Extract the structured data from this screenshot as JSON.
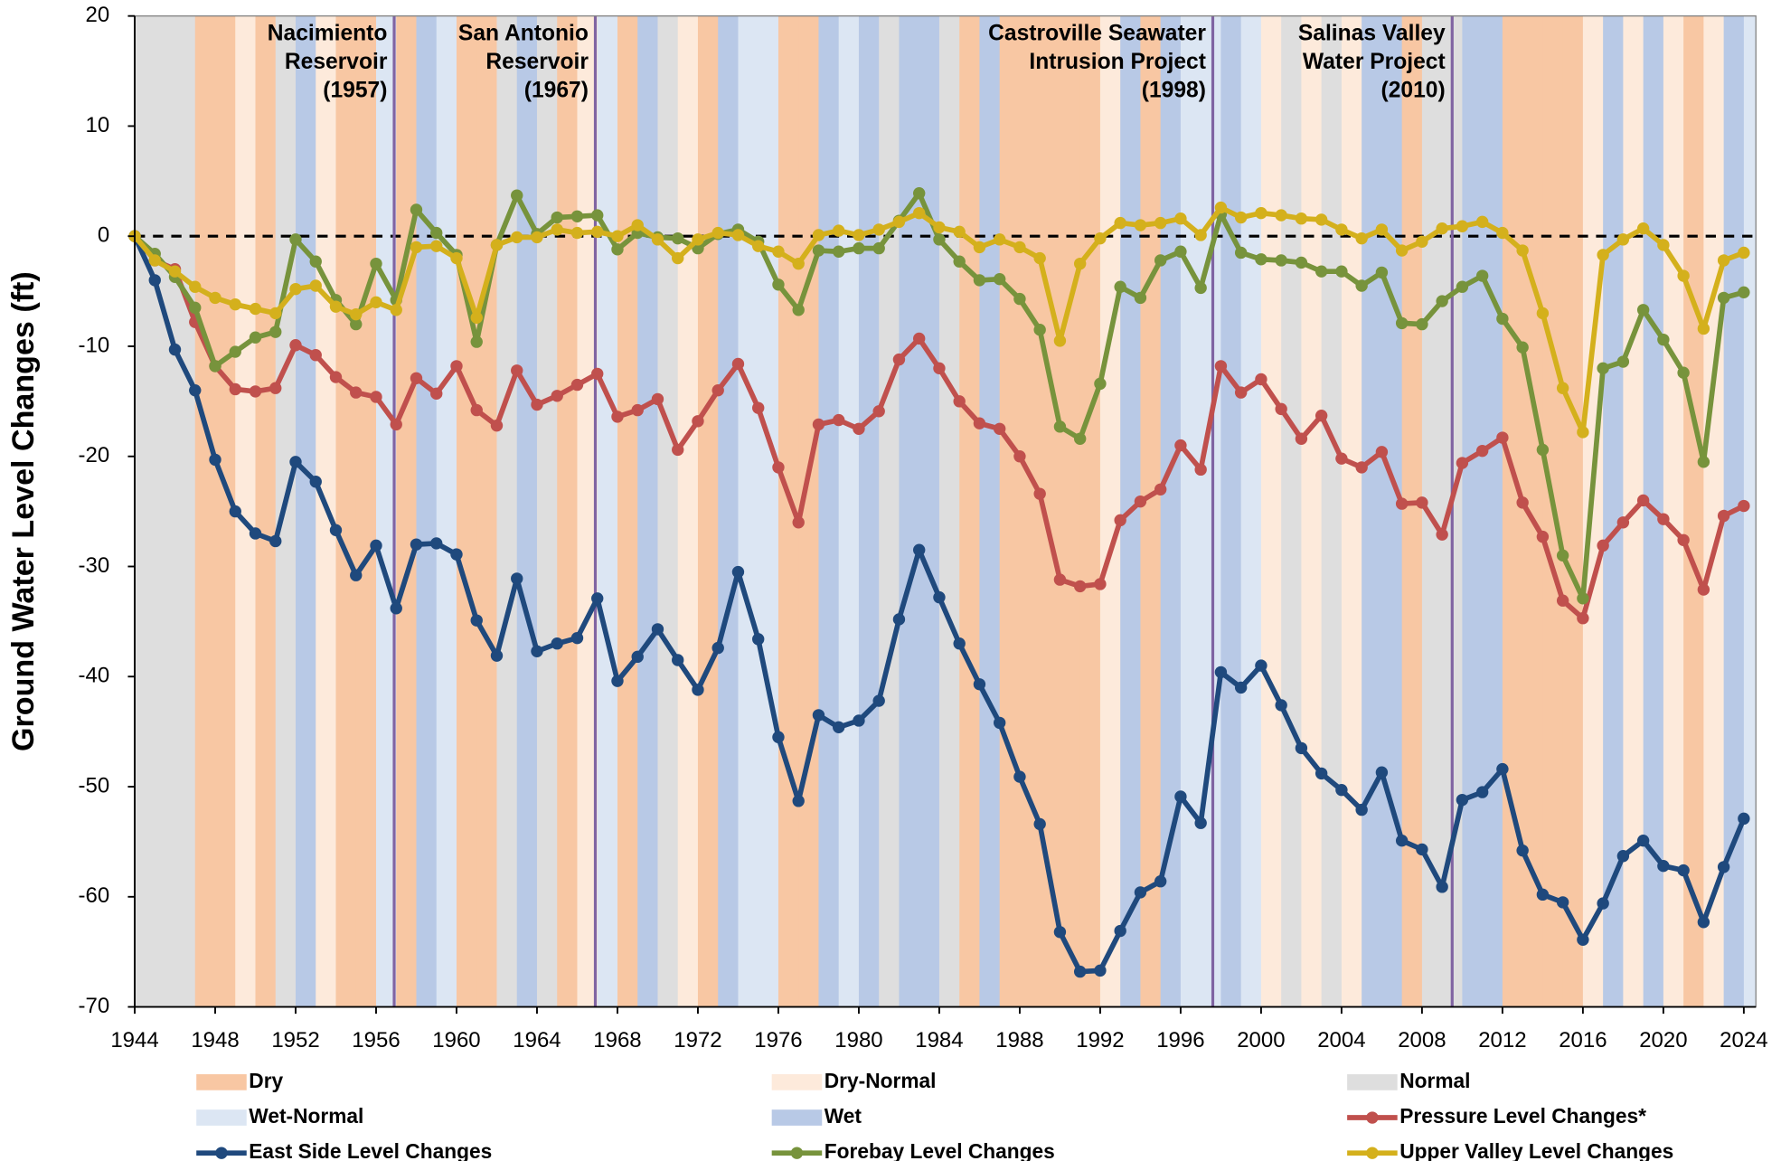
{
  "chart_data": {
    "type": "line",
    "y_label": "Ground Water Level Changes (ft)",
    "x": [
      1944,
      1945,
      1946,
      1947,
      1948,
      1949,
      1950,
      1951,
      1952,
      1953,
      1954,
      1955,
      1956,
      1957,
      1958,
      1959,
      1960,
      1961,
      1962,
      1963,
      1964,
      1965,
      1966,
      1967,
      1968,
      1969,
      1970,
      1971,
      1972,
      1973,
      1974,
      1975,
      1976,
      1977,
      1978,
      1979,
      1980,
      1981,
      1982,
      1983,
      1984,
      1985,
      1986,
      1987,
      1988,
      1989,
      1990,
      1991,
      1992,
      1993,
      1994,
      1995,
      1996,
      1997,
      1998,
      1999,
      2000,
      2001,
      2002,
      2003,
      2004,
      2005,
      2006,
      2007,
      2008,
      2009,
      2010,
      2011,
      2012,
      2013,
      2014,
      2015,
      2016,
      2017,
      2018,
      2019,
      2020,
      2021,
      2022,
      2023,
      2024
    ],
    "xlim": [
      1944,
      2024.6
    ],
    "xticks": [
      1944,
      1948,
      1952,
      1956,
      1960,
      1964,
      1968,
      1972,
      1976,
      1980,
      1984,
      1988,
      1992,
      1996,
      2000,
      2004,
      2008,
      2012,
      2016,
      2020,
      2024
    ],
    "ylim": [
      -70,
      20
    ],
    "yticks": [
      -70,
      -60,
      -50,
      -40,
      -30,
      -20,
      -10,
      0,
      10,
      20
    ],
    "reference_line": 0,
    "band_types": [
      {
        "name": "Dry",
        "color": "#f8c7a3"
      },
      {
        "name": "Dry-Normal",
        "color": "#fdeadb"
      },
      {
        "name": "Normal",
        "color": "#dedede"
      },
      {
        "name": "Wet-Normal",
        "color": "#dce6f3"
      },
      {
        "name": "Wet",
        "color": "#b8c9e6"
      }
    ],
    "year_types": [
      2,
      2,
      2,
      0,
      0,
      1,
      0,
      2,
      4,
      1,
      0,
      0,
      3,
      0,
      4,
      3,
      0,
      0,
      2,
      4,
      2,
      0,
      1,
      3,
      0,
      4,
      2,
      1,
      0,
      4,
      3,
      3,
      0,
      0,
      4,
      3,
      4,
      2,
      4,
      4,
      2,
      0,
      4,
      0,
      0,
      0,
      0,
      0,
      1,
      4,
      0,
      4,
      3,
      3,
      4,
      3,
      1,
      2,
      1,
      2,
      1,
      4,
      4,
      0,
      2,
      2,
      4,
      4,
      0,
      0,
      0,
      0,
      1,
      4,
      1,
      4,
      1,
      0,
      1,
      4,
      3
    ],
    "events": [
      {
        "x": 1956.9,
        "lines": [
          "Nacimiento",
          "Reservoir",
          "(1957)"
        ]
      },
      {
        "x": 1966.9,
        "lines": [
          "San Antonio",
          "Reservoir",
          "(1967)"
        ]
      },
      {
        "x": 1997.6,
        "lines": [
          "Castroville Seawater",
          "Intrusion Project",
          "(1998)"
        ]
      },
      {
        "x": 2009.5,
        "lines": [
          "Salinas Valley",
          "Water Project",
          "(2010)"
        ]
      }
    ],
    "event_color": "#8064a2",
    "series": [
      {
        "name": "Pressure Level Changes*",
        "color": "#c0504d",
        "values": [
          0,
          -2.2,
          -3.0,
          -7.8,
          -11.8,
          -13.9,
          -14.1,
          -13.8,
          -9.9,
          -10.8,
          -12.8,
          -14.2,
          -14.6,
          -17.1,
          -12.9,
          -14.3,
          -11.8,
          -15.8,
          -17.2,
          -12.2,
          -15.3,
          -14.5,
          -13.5,
          -12.5,
          -16.4,
          -15.8,
          -14.8,
          -19.4,
          -16.8,
          -14.0,
          -11.6,
          -15.6,
          -21.0,
          -26.0,
          -17.1,
          -16.7,
          -17.5,
          -15.9,
          -11.2,
          -9.3,
          -12.0,
          -15.0,
          -17.0,
          -17.5,
          -20.0,
          -23.4,
          -31.2,
          -31.8,
          -31.6,
          -25.8,
          -24.1,
          -23.0,
          -19.0,
          -21.2,
          -11.8,
          -14.2,
          -13.0,
          -15.7,
          -18.4,
          -16.3,
          -20.2,
          -21.0,
          -19.6,
          -24.3,
          -24.2,
          -27.1,
          -20.6,
          -19.5,
          -18.3,
          -24.2,
          -27.3,
          -33.1,
          -34.7,
          -28.1,
          -26.0,
          -24.0,
          -25.7,
          -27.6,
          -32.1,
          -25.4,
          -24.5
        ]
      },
      {
        "name": "East Side Level Changes",
        "color": "#1f497d",
        "values": [
          0,
          -4.0,
          -10.3,
          -14.0,
          -20.3,
          -25.0,
          -27.0,
          -27.7,
          -20.5,
          -22.3,
          -26.7,
          -30.8,
          -28.1,
          -33.8,
          -28.0,
          -27.9,
          -28.9,
          -34.9,
          -38.1,
          -31.1,
          -37.7,
          -37.0,
          -36.5,
          -32.9,
          -40.4,
          -38.2,
          -35.7,
          -38.5,
          -41.2,
          -37.4,
          -30.5,
          -36.6,
          -45.5,
          -51.3,
          -43.5,
          -44.6,
          -44.0,
          -42.2,
          -34.8,
          -28.5,
          -32.8,
          -37.0,
          -40.7,
          -44.2,
          -49.1,
          -53.4,
          -63.2,
          -66.8,
          -66.7,
          -63.1,
          -59.6,
          -58.6,
          -50.9,
          -53.3,
          -39.6,
          -41.0,
          -39.0,
          -42.6,
          -46.5,
          -48.8,
          -50.3,
          -52.1,
          -48.7,
          -54.9,
          -55.7,
          -59.1,
          -51.2,
          -50.5,
          -48.4,
          -55.8,
          -59.8,
          -60.5,
          -63.9,
          -60.6,
          -56.3,
          -54.9,
          -57.2,
          -57.6,
          -62.3,
          -57.3,
          -52.9
        ]
      },
      {
        "name": "Forebay Level Changes",
        "color": "#77933c",
        "values": [
          0,
          -1.6,
          -3.7,
          -6.5,
          -11.8,
          -10.5,
          -9.2,
          -8.7,
          -0.3,
          -2.3,
          -5.8,
          -8.0,
          -2.5,
          -5.8,
          2.4,
          0.3,
          -1.7,
          -9.6,
          -0.8,
          3.7,
          0.2,
          1.7,
          1.8,
          1.9,
          -1.2,
          0.3,
          -0.1,
          -0.2,
          -1.1,
          0.2,
          0.6,
          -0.5,
          -4.4,
          -6.7,
          -1.3,
          -1.4,
          -1.1,
          -1.1,
          1.4,
          3.9,
          -0.3,
          -2.3,
          -4.0,
          -3.9,
          -5.7,
          -8.5,
          -17.3,
          -18.4,
          -13.4,
          -4.6,
          -5.6,
          -2.2,
          -1.4,
          -4.7,
          2.0,
          -1.5,
          -2.1,
          -2.2,
          -2.4,
          -3.2,
          -3.2,
          -4.5,
          -3.3,
          -7.9,
          -8.0,
          -5.9,
          -4.6,
          -3.6,
          -7.5,
          -10.1,
          -19.4,
          -29.0,
          -32.9,
          -12.0,
          -11.4,
          -6.7,
          -9.4,
          -12.4,
          -20.5,
          -5.6,
          -5.1
        ]
      },
      {
        "name": "Upper Valley Level Changes",
        "color": "#d4b01c",
        "values": [
          0,
          -2.2,
          -3.2,
          -4.6,
          -5.6,
          -6.2,
          -6.6,
          -7.0,
          -4.8,
          -4.5,
          -6.4,
          -7.1,
          -6.0,
          -6.7,
          -1.0,
          -0.9,
          -2.0,
          -7.4,
          -0.8,
          -0.1,
          -0.1,
          0.6,
          0.3,
          0.4,
          0.0,
          1.0,
          -0.3,
          -2.0,
          -0.3,
          0.3,
          0.1,
          -0.9,
          -1.4,
          -2.5,
          0.1,
          0.5,
          0.1,
          0.6,
          1.3,
          2.1,
          0.8,
          0.4,
          -1.0,
          -0.3,
          -1.0,
          -2.0,
          -9.5,
          -2.5,
          -0.2,
          1.2,
          1.0,
          1.2,
          1.6,
          0.1,
          2.6,
          1.7,
          2.1,
          1.9,
          1.6,
          1.5,
          0.6,
          -0.2,
          0.6,
          -1.3,
          -0.5,
          0.7,
          0.9,
          1.3,
          0.3,
          -1.3,
          -7.0,
          -13.8,
          -17.8,
          -1.7,
          -0.3,
          0.7,
          -0.8,
          -3.6,
          -8.4,
          -2.2,
          -1.5
        ]
      }
    ]
  }
}
